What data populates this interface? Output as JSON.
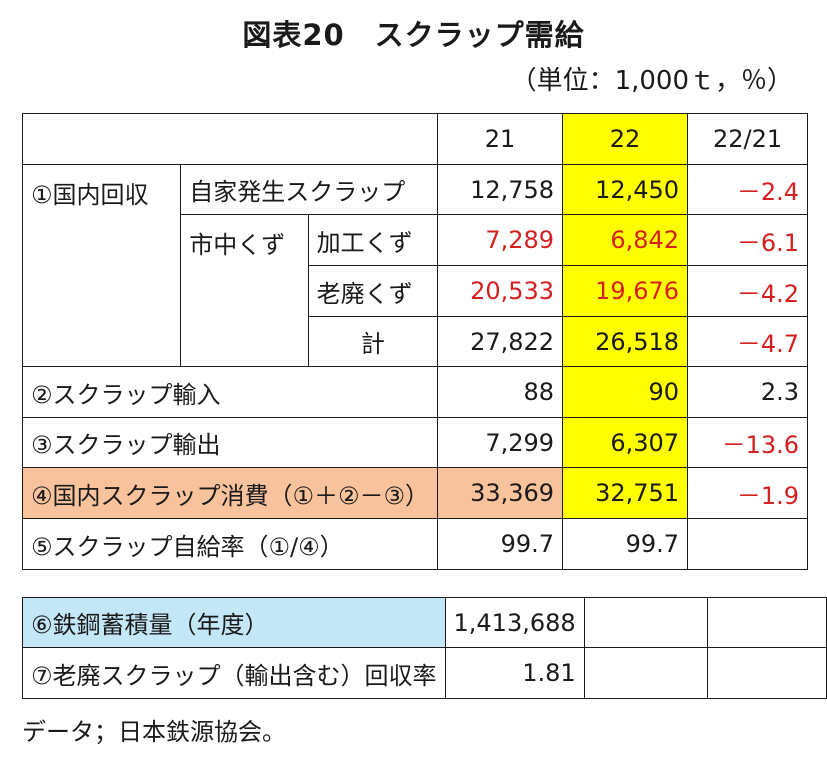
{
  "title": "図表20　スクラップ需給",
  "unit": "（単位：1,000ｔ，％）",
  "headers": {
    "y21": "21",
    "y22": "22",
    "ratio": "22/21"
  },
  "rows": {
    "r1": {
      "group": "①国内回収",
      "label": "自家発生スクラップ",
      "y21": "12,758",
      "y22": "12,450",
      "ratio": "－2.4"
    },
    "r2": {
      "subgroup": "市中くず",
      "label": "加工くず",
      "y21": "7,289",
      "y22": "6,842",
      "ratio": "－6.1"
    },
    "r3": {
      "label": "老廃くず",
      "y21": "20,533",
      "y22": "19,676",
      "ratio": "－4.2"
    },
    "r4": {
      "label": "計",
      "y21": "27,822",
      "y22": "26,518",
      "ratio": "－4.7"
    },
    "r5": {
      "label": "②スクラップ輸入",
      "y21": "88",
      "y22": "90",
      "ratio": "2.3"
    },
    "r6": {
      "label": "③スクラップ輸出",
      "y21": "7,299",
      "y22": "6,307",
      "ratio": "－13.6"
    },
    "r7": {
      "label": "④国内スクラップ消費（①＋②－③）",
      "y21": "33,369",
      "y22": "32,751",
      "ratio": "－1.9"
    },
    "r8": {
      "label": "⑤スクラップ自給率（①/④）",
      "y21": "99.7",
      "y22": "99.7",
      "ratio": ""
    }
  },
  "sub_rows": {
    "s1": {
      "label": "⑥鉄鋼蓄積量（年度）",
      "y21": "1,413,688"
    },
    "s2": {
      "label": "⑦老廃スクラップ（輸出含む）回収率",
      "y21": "1.81"
    }
  },
  "note": "データ；日本鉄源協会。",
  "colors": {
    "highlight_22": "#ffff00",
    "highlight_row4": "#f8c39c",
    "highlight_row6": "#c4e7f8",
    "negative": "#d42020"
  }
}
